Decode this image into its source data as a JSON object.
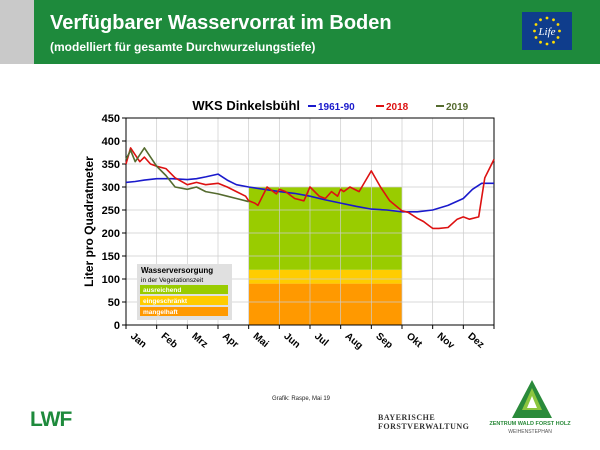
{
  "header": {
    "title": "Verfügbarer Wasservorrat im Boden",
    "subtitle": "(modelliert für gesamte Durchwurzelungstiefe)"
  },
  "eu_logo": {
    "text": "Life"
  },
  "chart_data": {
    "type": "line",
    "title": "WKS Dinkelsbühl",
    "xlabel": "",
    "ylabel": "Liter pro Quadratmeter",
    "ylim": [
      0,
      450
    ],
    "yticks": [
      0,
      50,
      100,
      150,
      200,
      250,
      300,
      350,
      400,
      450
    ],
    "xlim": [
      0,
      12
    ],
    "month_labels": [
      "Jan",
      "Feb",
      "Mrz",
      "Apr",
      "Mai",
      "Jun",
      "Jul",
      "Aug",
      "Sep",
      "Okt",
      "Nov",
      "Dez"
    ],
    "grid": true,
    "legend_position": "top",
    "background_zones": [
      {
        "x_from": 4,
        "x_to": 5,
        "y_from": 0,
        "y_to": 90,
        "color": "#ff9900"
      },
      {
        "x_from": 4,
        "x_to": 5,
        "y_from": 90,
        "y_to": 120,
        "color": "#ffcc00"
      },
      {
        "x_from": 4,
        "x_to": 5,
        "y_from": 120,
        "y_to": 300,
        "color": "#99cc00"
      },
      {
        "x_from": 5,
        "x_to": 9,
        "y_from": 0,
        "y_to": 90,
        "color": "#ff9900"
      },
      {
        "x_from": 5,
        "x_to": 9,
        "y_from": 90,
        "y_to": 120,
        "color": "#ffcc00"
      },
      {
        "x_from": 5,
        "x_to": 9,
        "y_from": 120,
        "y_to": 300,
        "color": "#99cc00"
      }
    ],
    "series": [
      {
        "name": "1961-90",
        "color": "#1a1acc",
        "x": [
          0,
          0.3,
          0.6,
          1,
          1.5,
          2,
          2.3,
          2.6,
          3,
          3.3,
          3.6,
          4,
          4.5,
          5,
          5.5,
          6,
          6.5,
          7,
          7.5,
          8,
          8.5,
          9,
          9.5,
          10,
          10.5,
          11,
          11.3,
          11.6,
          12
        ],
        "y": [
          310,
          312,
          315,
          318,
          318,
          316,
          318,
          322,
          328,
          315,
          305,
          300,
          295,
          290,
          286,
          280,
          272,
          265,
          258,
          252,
          250,
          246,
          246,
          250,
          260,
          275,
          295,
          308,
          308
        ]
      },
      {
        "name": "2018",
        "color": "#dd1111",
        "x": [
          0,
          0.15,
          0.3,
          0.45,
          0.6,
          0.8,
          1,
          1.3,
          1.6,
          2,
          2.3,
          2.6,
          3,
          3.3,
          3.6,
          3.9,
          4,
          4.2,
          4.3,
          4.6,
          4.9,
          5,
          5.2,
          5.5,
          5.8,
          6,
          6.3,
          6.5,
          6.7,
          6.9,
          7,
          7.1,
          7.3,
          7.6,
          8,
          8.3,
          8.6,
          9,
          9.2,
          9.5,
          9.7,
          9.9,
          10,
          10.2,
          10.5,
          10.8,
          11,
          11.2,
          11.5,
          11.7,
          11.85,
          12
        ],
        "y": [
          350,
          385,
          370,
          355,
          365,
          350,
          345,
          340,
          320,
          305,
          310,
          305,
          308,
          300,
          290,
          280,
          270,
          265,
          260,
          300,
          285,
          295,
          290,
          275,
          270,
          300,
          280,
          275,
          290,
          280,
          295,
          290,
          300,
          290,
          335,
          300,
          270,
          248,
          245,
          232,
          225,
          215,
          210,
          210,
          212,
          230,
          235,
          230,
          235,
          320,
          340,
          360
        ]
      },
      {
        "name": "2019",
        "color": "#556b2f",
        "x": [
          0,
          0.15,
          0.3,
          0.45,
          0.6,
          0.8,
          1,
          1.3,
          1.6,
          2,
          2.3,
          2.6,
          3,
          3.3,
          3.6,
          3.9,
          4
        ],
        "y": [
          360,
          380,
          355,
          370,
          385,
          365,
          345,
          325,
          300,
          295,
          300,
          290,
          285,
          280,
          275,
          270,
          268
        ]
      }
    ],
    "legend_box": {
      "title": "Wasserversorgung",
      "subtitle": "in der Vegetationszeit",
      "items": [
        {
          "label": "ausreichend",
          "color": "#99cc00"
        },
        {
          "label": "eingeschränkt",
          "color": "#ffcc00"
        },
        {
          "label": "mangelhaft",
          "color": "#ff9900"
        }
      ]
    }
  },
  "footer": {
    "credit": "Grafik: Raspe, Mai 19",
    "lwf_logo": "LWF",
    "bayern_line1": "BAYERISCHE",
    "bayern_line2": "FORSTVERWALTUNG",
    "zentrum_line1": "ZENTRUM WALD FORST HOLZ",
    "zentrum_line2": "WEIHENSTEPHAN"
  },
  "colors": {
    "header_green": "#1e8a3c",
    "grid": "#cccccc",
    "plot_bg": "#ffffff"
  }
}
